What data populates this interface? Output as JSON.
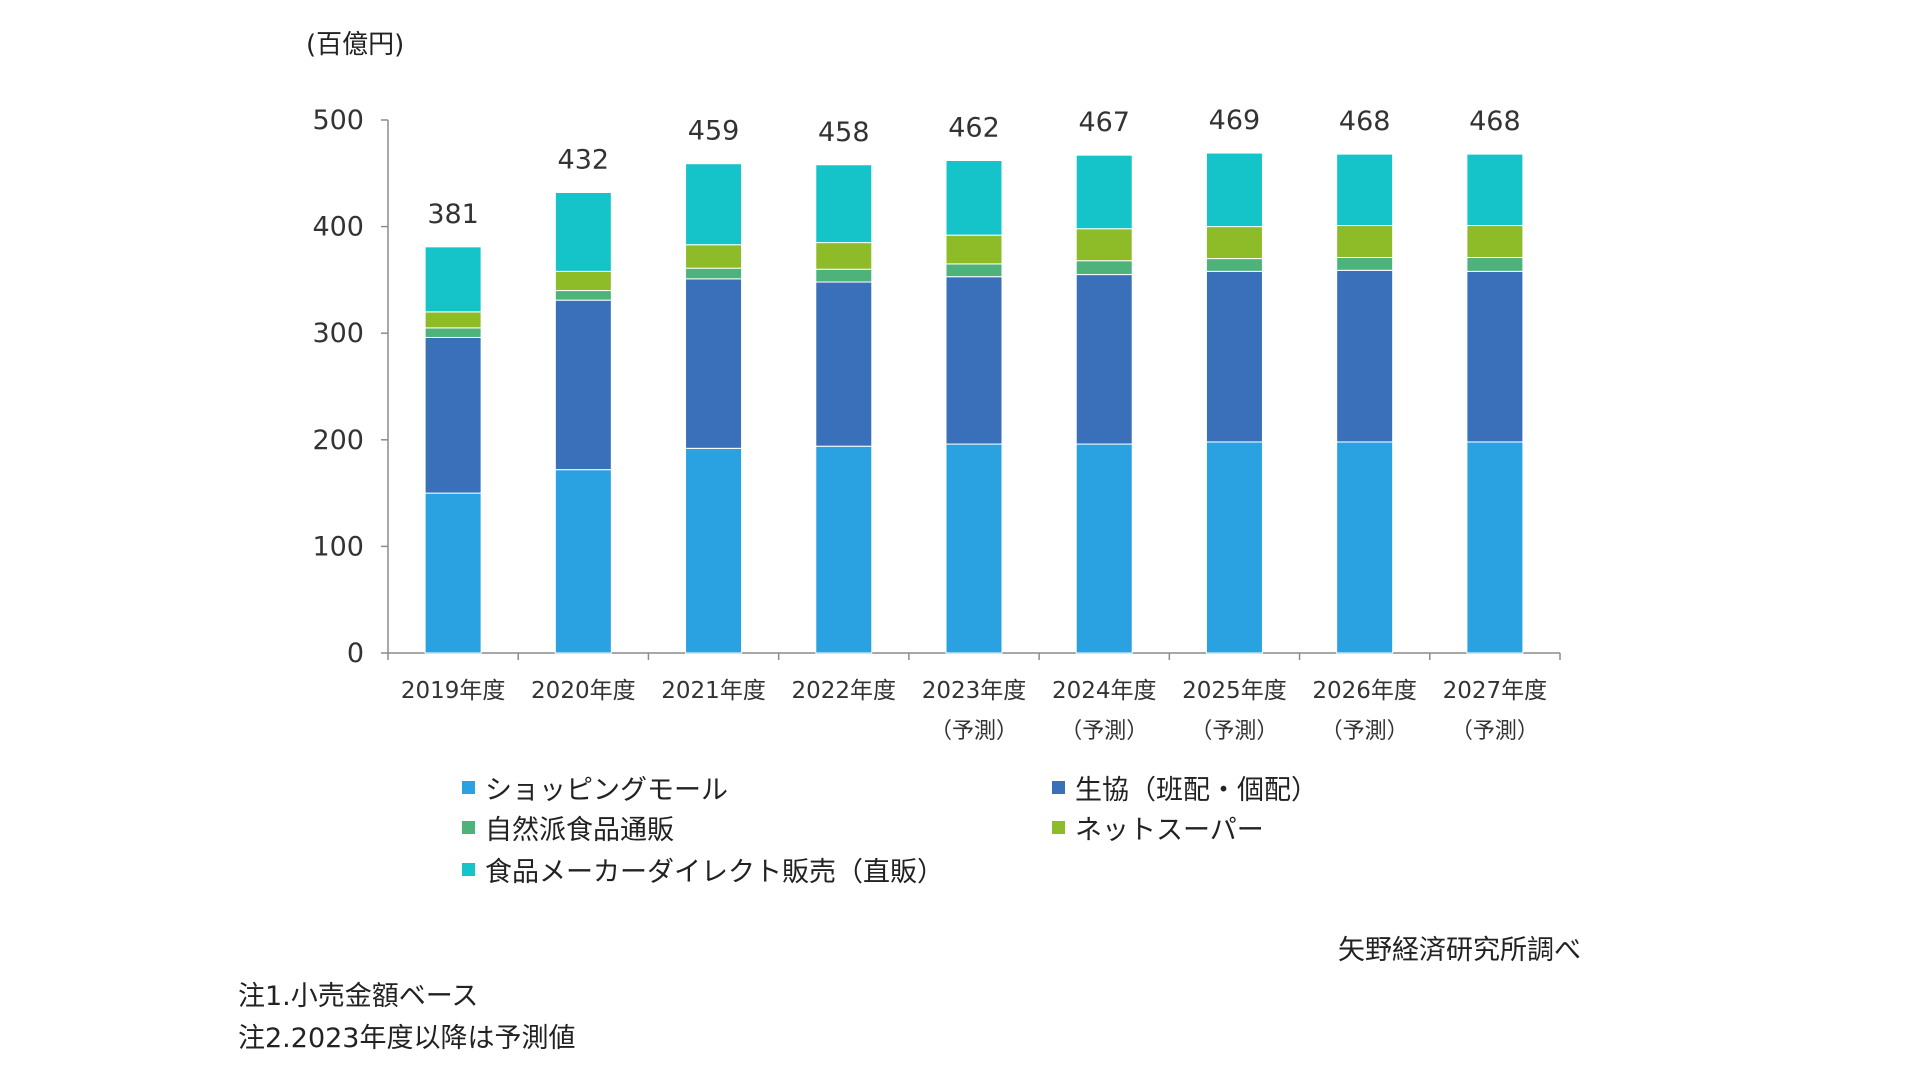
{
  "unit_label": "(百億円)",
  "source": "矢野経済研究所調べ",
  "notes": [
    "注1.小売金額ベース",
    "注2.2023年度以降は予測値"
  ],
  "colors": {
    "shopping_mall": "#2aa1e0",
    "coop": "#3a6fba",
    "natural_food": "#4db37a",
    "net_super": "#8ebb28",
    "maker_direct": "#14c4c9",
    "axis": "#8c8c8c"
  },
  "chart_data": {
    "type": "bar",
    "stacked": true,
    "categories": [
      "2019年度",
      "2020年度",
      "2021年度",
      "2022年度",
      "2023年度",
      "2024年度",
      "2025年度",
      "2026年度",
      "2027年度"
    ],
    "category_sublabels": [
      "",
      "",
      "",
      "",
      "（予測）",
      "（予測）",
      "（予測）",
      "（予測）",
      "（予測）"
    ],
    "series": [
      {
        "name": "ショッピングモール",
        "color_key": "shopping_mall",
        "values": [
          150,
          172,
          192,
          194,
          196,
          196,
          198,
          198,
          198
        ]
      },
      {
        "name": "生協（班配・個配）",
        "color_key": "coop",
        "values": [
          146,
          159,
          159,
          154,
          157,
          159,
          160,
          161,
          160
        ]
      },
      {
        "name": "自然派食品通販",
        "color_key": "natural_food",
        "values": [
          9,
          9,
          10,
          12,
          12,
          13,
          12,
          12,
          13
        ]
      },
      {
        "name": "ネットスーパー",
        "color_key": "net_super",
        "values": [
          15,
          18,
          22,
          25,
          27,
          30,
          30,
          30,
          30
        ]
      },
      {
        "name": "食品メーカーダイレクト販売（直販）",
        "color_key": "maker_direct",
        "values": [
          61,
          74,
          76,
          73,
          70,
          69,
          69,
          67,
          67
        ]
      }
    ],
    "totals": [
      381,
      432,
      459,
      458,
      462,
      467,
      469,
      468,
      468
    ],
    "ylim": [
      0,
      500
    ],
    "yticks": [
      0,
      100,
      200,
      300,
      400,
      500
    ],
    "xlabel": "",
    "ylabel": "",
    "grid": false,
    "legend_position": "bottom"
  }
}
